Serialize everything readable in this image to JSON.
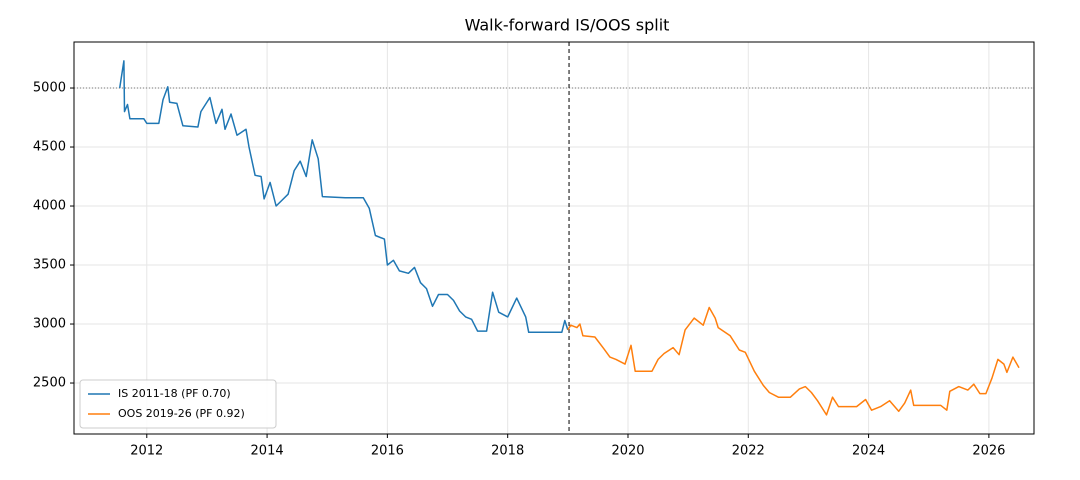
{
  "chart_data": {
    "type": "line",
    "title": "Walk-forward IS/OOS split",
    "xlim": [
      2010.79,
      2026.75
    ],
    "ylim": [
      2068,
      5390
    ],
    "xticks": [
      2012,
      2014,
      2016,
      2018,
      2020,
      2022,
      2024,
      2026
    ],
    "yticks": [
      2500,
      3000,
      3500,
      4000,
      4500,
      5000
    ],
    "grid": true,
    "legend": "lower left",
    "hline": 5000,
    "vline": 2019.02,
    "series": [
      {
        "name": "IS 2011-18 (PF 0.70)",
        "color": "#1f77b4",
        "x": [
          2011.55,
          2011.62,
          2011.63,
          2011.68,
          2011.72,
          2011.95,
          2012.0,
          2012.2,
          2012.27,
          2012.35,
          2012.38,
          2012.5,
          2012.6,
          2012.85,
          2012.9,
          2013.05,
          2013.15,
          2013.25,
          2013.3,
          2013.4,
          2013.5,
          2013.65,
          2013.7,
          2013.8,
          2013.9,
          2013.95,
          2014.05,
          2014.15,
          2014.25,
          2014.35,
          2014.45,
          2014.55,
          2014.65,
          2014.75,
          2014.85,
          2014.92,
          2015.3,
          2015.6,
          2015.7,
          2015.8,
          2015.95,
          2016.0,
          2016.1,
          2016.2,
          2016.35,
          2016.45,
          2016.55,
          2016.65,
          2016.75,
          2016.85,
          2017.0,
          2017.1,
          2017.2,
          2017.3,
          2017.4,
          2017.5,
          2017.65,
          2017.75,
          2017.85,
          2018.0,
          2018.15,
          2018.3,
          2018.35,
          2018.9,
          2018.95,
          2019.0
        ],
        "values": [
          5000,
          5230,
          4800,
          4860,
          4740,
          4740,
          4700,
          4700,
          4900,
          5010,
          4880,
          4870,
          4680,
          4670,
          4800,
          4920,
          4700,
          4820,
          4650,
          4780,
          4600,
          4650,
          4500,
          4260,
          4250,
          4060,
          4200,
          4000,
          4050,
          4100,
          4300,
          4380,
          4250,
          4560,
          4400,
          4080,
          4070,
          4070,
          3980,
          3750,
          3720,
          3500,
          3540,
          3450,
          3430,
          3480,
          3350,
          3300,
          3150,
          3250,
          3250,
          3200,
          3110,
          3060,
          3040,
          2940,
          2940,
          3270,
          3100,
          3060,
          3220,
          3060,
          2930,
          2930,
          3030,
          2950
        ]
      },
      {
        "name": "OOS 2019-26 (PF 0.92)",
        "color": "#ff7f0e",
        "x": [
          2019.0,
          2019.05,
          2019.15,
          2019.2,
          2019.25,
          2019.45,
          2019.6,
          2019.7,
          2019.8,
          2019.95,
          2020.05,
          2020.12,
          2020.4,
          2020.5,
          2020.6,
          2020.75,
          2020.85,
          2020.95,
          2021.1,
          2021.25,
          2021.35,
          2021.45,
          2021.5,
          2021.7,
          2021.85,
          2021.95,
          2022.1,
          2022.25,
          2022.35,
          2022.5,
          2022.7,
          2022.85,
          2022.95,
          2023.05,
          2023.15,
          2023.3,
          2023.4,
          2023.5,
          2023.8,
          2023.95,
          2024.05,
          2024.2,
          2024.35,
          2024.5,
          2024.6,
          2024.7,
          2024.75,
          2025.2,
          2025.3,
          2025.35,
          2025.5,
          2025.65,
          2025.75,
          2025.85,
          2025.95,
          2026.05,
          2026.15,
          2026.25,
          2026.3,
          2026.4,
          2026.5
        ],
        "values": [
          2950,
          2990,
          2970,
          3000,
          2900,
          2890,
          2790,
          2720,
          2700,
          2660,
          2820,
          2600,
          2600,
          2700,
          2750,
          2800,
          2740,
          2950,
          3050,
          2990,
          3140,
          3050,
          2970,
          2900,
          2780,
          2760,
          2600,
          2480,
          2420,
          2380,
          2380,
          2450,
          2470,
          2420,
          2350,
          2230,
          2380,
          2300,
          2300,
          2360,
          2270,
          2300,
          2350,
          2260,
          2330,
          2440,
          2310,
          2310,
          2270,
          2430,
          2470,
          2440,
          2490,
          2410,
          2410,
          2540,
          2700,
          2660,
          2590,
          2720,
          2630
        ]
      }
    ]
  }
}
